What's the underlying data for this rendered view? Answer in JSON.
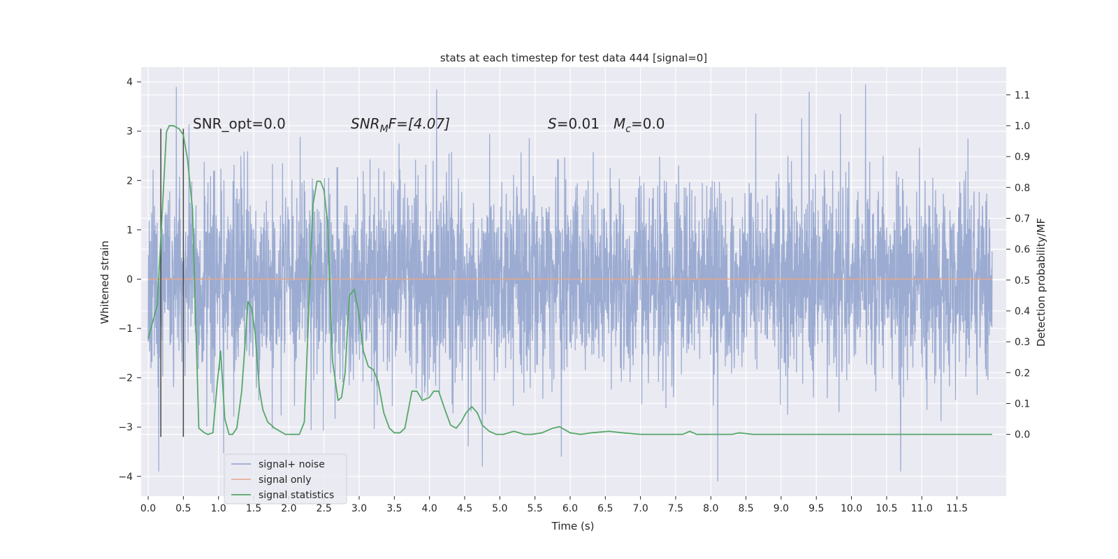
{
  "chart_data": {
    "type": "line",
    "title": "stats at each timestep for test data 444 [signal=0]",
    "xlabel": "Time (s)",
    "ylabel": "Whitened strain",
    "y2label": "Detection probability/MF",
    "xlim": [
      -0.1,
      12.2
    ],
    "ylim": [
      -4.4,
      4.3
    ],
    "y2lim": [
      -0.2,
      1.19
    ],
    "grid": true,
    "legend_position": "lower-left",
    "x_ticks": [
      "0.0",
      "0.5",
      "1.0",
      "1.5",
      "2.0",
      "2.5",
      "3.0",
      "3.5",
      "4.0",
      "4.5",
      "5.0",
      "5.5",
      "6.0",
      "6.5",
      "7.0",
      "7.5",
      "8.0",
      "8.5",
      "9.0",
      "9.5",
      "10.0",
      "10.5",
      "11.0",
      "11.5"
    ],
    "y_ticks": [
      "4",
      "3",
      "2",
      "1",
      "0",
      "−1",
      "−2",
      "−3",
      "−4"
    ],
    "y2_ticks": [
      "1.1",
      "1.0",
      "0.9",
      "0.8",
      "0.7",
      "0.6",
      "0.5",
      "0.4",
      "0.3",
      "0.2",
      "0.1",
      "0.0"
    ],
    "annotations": {
      "snr_opt": "SNR_opt=0.0",
      "snr_mf_prefix": "SNR",
      "snr_mf_sub": "M",
      "snr_mf_rest": "F=[4.07]",
      "s_label": "S",
      "s_value": "=0.01",
      "mc_label": "M",
      "mc_sub": "c",
      "mc_value": "=0.0"
    },
    "series": [
      {
        "name": "signal+ noise",
        "color": "#8da0cb",
        "description": "whitened noisy strain, ~N(0,1) over t=0..12 s, range about -4.1..3.9",
        "x_range": [
          0.0,
          12.0
        ],
        "peaks": [
          [
            0.4,
            3.9
          ],
          [
            4.1,
            3.85
          ],
          [
            10.2,
            3.95
          ],
          [
            9.4,
            3.8
          ],
          [
            0.15,
            -3.9
          ],
          [
            8.1,
            -4.1
          ],
          [
            10.7,
            -3.9
          ],
          [
            4.75,
            -3.8
          ]
        ]
      },
      {
        "name": "signal only",
        "color": "#e5a68a",
        "x": [
          0.0,
          12.0
        ],
        "y": [
          0.0,
          0.0
        ]
      },
      {
        "name": "signal statistics",
        "color": "#55a868",
        "axis": "right",
        "x": [
          0.0,
          0.13,
          0.26,
          0.3,
          0.36,
          0.44,
          0.5,
          0.56,
          0.63,
          0.72,
          0.8,
          0.85,
          0.92,
          0.98,
          1.03,
          1.09,
          1.15,
          1.2,
          1.26,
          1.33,
          1.42,
          1.47,
          1.52,
          1.58,
          1.63,
          1.7,
          1.8,
          1.95,
          2.05,
          2.15,
          2.22,
          2.28,
          2.34,
          2.4,
          2.45,
          2.5,
          2.55,
          2.62,
          2.7,
          2.75,
          2.8,
          2.86,
          2.93,
          2.99,
          3.06,
          3.13,
          3.2,
          3.27,
          3.35,
          3.43,
          3.5,
          3.58,
          3.65,
          3.75,
          3.82,
          3.9,
          4.0,
          4.06,
          4.13,
          4.22,
          4.3,
          4.38,
          4.45,
          4.52,
          4.6,
          4.68,
          4.75,
          4.85,
          4.95,
          5.05,
          5.2,
          5.35,
          5.45,
          5.6,
          5.75,
          5.85,
          6.0,
          6.15,
          6.3,
          6.55,
          6.75,
          7.0,
          7.3,
          7.6,
          7.7,
          7.8,
          8.0,
          8.3,
          8.4,
          8.6,
          9.0,
          9.4,
          9.6,
          9.8,
          10.0,
          10.5,
          11.0,
          11.5,
          11.9,
          12.0
        ],
        "y": [
          0.31,
          0.42,
          0.98,
          1.0,
          1.0,
          0.99,
          0.97,
          0.89,
          0.73,
          0.02,
          0.005,
          0.0,
          0.005,
          0.16,
          0.27,
          0.05,
          0.0,
          0.0,
          0.02,
          0.14,
          0.43,
          0.41,
          0.33,
          0.15,
          0.08,
          0.04,
          0.02,
          0.0,
          0.0,
          0.0,
          0.04,
          0.38,
          0.74,
          0.82,
          0.82,
          0.79,
          0.69,
          0.24,
          0.11,
          0.12,
          0.2,
          0.45,
          0.47,
          0.4,
          0.27,
          0.22,
          0.21,
          0.17,
          0.07,
          0.02,
          0.005,
          0.005,
          0.02,
          0.14,
          0.14,
          0.11,
          0.12,
          0.14,
          0.14,
          0.08,
          0.03,
          0.02,
          0.04,
          0.07,
          0.09,
          0.07,
          0.03,
          0.01,
          0.0,
          0.0,
          0.01,
          0.0,
          0.0,
          0.005,
          0.02,
          0.025,
          0.005,
          0.0,
          0.005,
          0.01,
          0.005,
          0.0,
          0.0,
          0.0,
          0.01,
          0.0,
          0.0,
          0.0,
          0.005,
          0.0,
          0.0,
          0.0,
          0.0,
          0.0,
          0.0,
          0.0,
          0.0,
          0.0,
          0.0,
          0.0
        ]
      }
    ],
    "markers": {
      "color": "#444444",
      "description": "vertical dark lines",
      "lines": [
        [
          0.18,
          -3.2,
          3.05
        ],
        [
          0.5,
          -3.2,
          3.05
        ]
      ]
    }
  }
}
